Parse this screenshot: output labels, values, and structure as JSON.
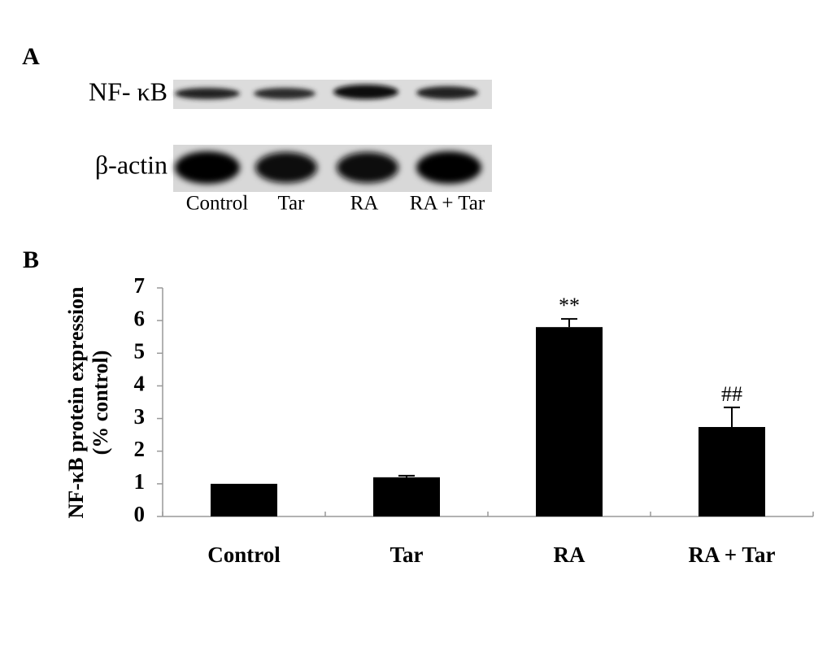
{
  "panel_a": {
    "label": "A",
    "row_labels": [
      "NF- κB",
      "β-actin"
    ],
    "lane_labels": [
      "Control",
      "Tar",
      "RA",
      "RA + Tar"
    ]
  },
  "panel_b": {
    "label": "B"
  },
  "chart_data": {
    "type": "bar",
    "y_label": [
      "NF-κB protein expression",
      "(% control)"
    ],
    "categories": [
      "Control",
      "Tar",
      "RA",
      "RA + Tar"
    ],
    "values": [
      1.0,
      1.2,
      5.8,
      2.74
    ],
    "errors": [
      null,
      0.05,
      0.25,
      0.6
    ],
    "annotations": [
      null,
      null,
      "**",
      "##"
    ],
    "color": "#000000",
    "ylim": [
      0,
      7
    ],
    "yticks": [
      0,
      1,
      2,
      3,
      4,
      5,
      6,
      7
    ]
  }
}
